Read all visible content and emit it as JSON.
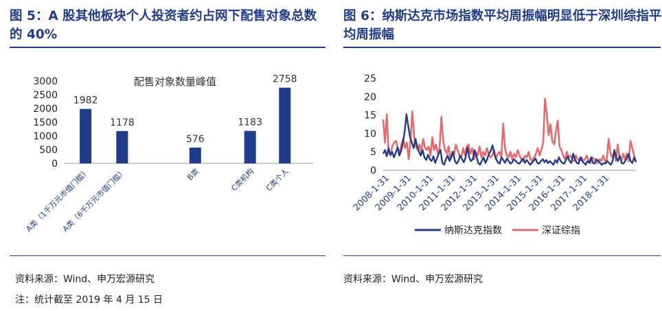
{
  "left": {
    "title": "图 5：A 股其他板块个人投资者约占网下配售对象总数的 40%",
    "source": "资料来源：Wind、申万宏源研究",
    "note": "注：统计截至 2019 年 4 月 15 日"
  },
  "right": {
    "title": "图 6：纳斯达克市场指数平均周振幅明显低于深圳综指平均周振幅",
    "source": "资料来源：Wind、申万宏源研究"
  },
  "chart_data": [
    {
      "type": "bar",
      "title": "配售对象数量峰值",
      "categories": [
        "A类（1千万元市值门槛）",
        "A类（6千万元市值门槛）",
        "B类",
        "C类机构",
        "C类个人"
      ],
      "values": [
        1982,
        1178,
        576,
        1183,
        2758
      ],
      "ylim": [
        0,
        3000
      ],
      "yticks": [
        0,
        500,
        1000,
        1500,
        2000,
        2500,
        3000
      ],
      "color": "#1f3c8a",
      "grid": false
    },
    {
      "type": "line",
      "xticks": [
        "2008-1-31",
        "2009-1-31",
        "2010-1-31",
        "2011-1-31",
        "2012-1-31",
        "2013-1-31",
        "2014-1-31",
        "2015-1-31",
        "2016-1-31",
        "2017-1-31",
        "2018-1-31"
      ],
      "x_range": [
        "2008-01",
        "2019-03"
      ],
      "ylim": [
        0,
        25
      ],
      "yticks": [
        0,
        5,
        10,
        15,
        20,
        25
      ],
      "legend_position": "bottom",
      "grid": false,
      "series": [
        {
          "name": "纳斯达克指数",
          "color": "#1f3c8a",
          "values": [
            4.5,
            5.5,
            3.8,
            6.0,
            4.2,
            5.0,
            3.5,
            4.8,
            6.2,
            4.0,
            5.2,
            7.5,
            10.5,
            15.2,
            12.0,
            9.0,
            7.5,
            6.0,
            8.5,
            6.5,
            5.0,
            4.0,
            5.5,
            3.5,
            2.8,
            4.2,
            3.0,
            2.5,
            3.8,
            2.0,
            3.2,
            4.5,
            5.5,
            2.0,
            1.5,
            3.0,
            4.0,
            2.5,
            3.5,
            5.0,
            2.5,
            1.8,
            2.6,
            4.0,
            3.0,
            2.2,
            3.5,
            6.2,
            3.5,
            2.5,
            3.0,
            5.5,
            3.8,
            2.0,
            1.5,
            2.5,
            3.5,
            2.0,
            3.0,
            4.5,
            5.2,
            6.8,
            4.5,
            3.0,
            2.2,
            1.8,
            3.5,
            2.8,
            2.0,
            3.2,
            2.5,
            1.8,
            2.2,
            3.0,
            2.5,
            2.0,
            1.8,
            2.5,
            3.2,
            2.0,
            2.8,
            2.2,
            1.5,
            2.0,
            2.6,
            3.2,
            2.0,
            1.8,
            2.5,
            3.0,
            2.2,
            2.8,
            1.9,
            2.5,
            2.0,
            1.5,
            2.8,
            2.0,
            3.5,
            2.5,
            2.0,
            1.8,
            2.8,
            3.8,
            2.5,
            2.0,
            4.5,
            3.0,
            2.0,
            1.8,
            3.5,
            2.5,
            2.0,
            1.5,
            2.5,
            2.0,
            3.5,
            2.0,
            1.8,
            3.0,
            2.5,
            2.0,
            1.5,
            2.0,
            1.8,
            2.5,
            2.0,
            1.5,
            2.5,
            5.5,
            3.5,
            2.5,
            4.0,
            2.0,
            1.8,
            2.5,
            3.5,
            4.5,
            2.5,
            2.0,
            3.5,
            2.2
          ]
        },
        {
          "name": "深证综指",
          "color": "#e8696a",
          "values": [
            13.8,
            7.5,
            15.2,
            5.0,
            4.0,
            6.5,
            7.5,
            8.0,
            6.0,
            4.5,
            7.0,
            8.5,
            6.0,
            7.5,
            3.0,
            8.0,
            16.0,
            9.0,
            6.5,
            5.5,
            7.0,
            5.0,
            8.5,
            6.0,
            5.5,
            6.5,
            4.0,
            9.0,
            5.5,
            7.0,
            4.5,
            6.0,
            14.5,
            8.0,
            5.5,
            4.5,
            6.5,
            3.0,
            5.0,
            4.5,
            7.0,
            5.5,
            4.0,
            3.5,
            6.0,
            4.0,
            6.5,
            7.0,
            4.5,
            6.0,
            3.0,
            5.0,
            4.0,
            6.5,
            3.5,
            5.0,
            4.0,
            6.0,
            4.5,
            3.5,
            4.0,
            5.5,
            3.0,
            4.5,
            5.0,
            3.5,
            12.7,
            6.0,
            4.0,
            3.5,
            5.0,
            3.0,
            4.5,
            3.5,
            5.5,
            4.0,
            3.0,
            2.5,
            4.0,
            3.5,
            5.0,
            3.0,
            2.5,
            3.5,
            4.5,
            6.0,
            4.0,
            5.5,
            7.5,
            19.5,
            15.0,
            9.5,
            12.5,
            8.0,
            7.0,
            10.5,
            13.5,
            6.5,
            5.5,
            4.0,
            3.0,
            5.0,
            3.5,
            4.0,
            3.0,
            2.5,
            4.0,
            3.0,
            2.5,
            3.5,
            2.5,
            3.0,
            4.0,
            2.5,
            2.0,
            3.5,
            3.0,
            2.5,
            2.0,
            3.0,
            2.5,
            4.0,
            2.5,
            3.0,
            8.5,
            4.5,
            3.5,
            5.0,
            2.5,
            7.0,
            3.5,
            2.5,
            4.5,
            3.0,
            4.5,
            2.5,
            8.0,
            6.0,
            4.0,
            2.5
          ]
        }
      ]
    }
  ]
}
